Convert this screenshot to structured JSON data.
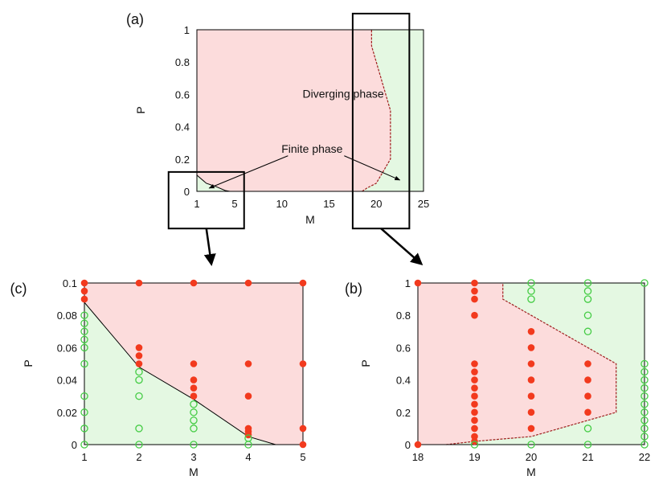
{
  "chart_data": [
    {
      "id": "a",
      "panel_label": "(a)",
      "type": "area",
      "xlabel": "M",
      "ylabel": "P",
      "xlim": [
        1,
        25
      ],
      "ylim": [
        0,
        1
      ],
      "xticks": [
        1,
        5,
        10,
        15,
        20,
        25
      ],
      "yticks": [
        0,
        0.2,
        0.4,
        0.6,
        0.8,
        1
      ],
      "ytick_labels": [
        "0",
        "0.2",
        "0.4",
        "0.6",
        "0.8",
        "1"
      ],
      "regions": {
        "diverging_color": "#fcdcdc",
        "finite_color": "#e4f8e2"
      },
      "boundary_left": [
        [
          1,
          0.1
        ],
        [
          2,
          0.05
        ],
        [
          3,
          0.03
        ],
        [
          4,
          0.005
        ],
        [
          4.5,
          0
        ]
      ],
      "boundary_right": [
        [
          18.5,
          0
        ],
        [
          19,
          0.02
        ],
        [
          20,
          0.05
        ],
        [
          21.5,
          0.2
        ],
        [
          21.5,
          0.5
        ],
        [
          19.5,
          0.9
        ],
        [
          19.5,
          1
        ]
      ],
      "annotations": [
        {
          "text": "Diverging phase",
          "x": 16.5,
          "y": 0.58
        },
        {
          "text": "Finite phase",
          "x": 13.2,
          "y": 0.24,
          "arrows_to": [
            [
              2.3,
              0.02
            ],
            [
              22.5,
              0.07
            ]
          ]
        }
      ],
      "zoom_boxes": [
        {
          "x": [
            -2,
            6
          ],
          "y": [
            -0.23,
            0.12
          ],
          "target": "c"
        },
        {
          "x": [
            17.5,
            23.5
          ],
          "y": [
            -0.23,
            1.1
          ],
          "target": "b"
        }
      ]
    },
    {
      "id": "c",
      "panel_label": "(c)",
      "type": "scatter",
      "xlabel": "M",
      "ylabel": "P",
      "xlim": [
        1,
        5
      ],
      "ylim": [
        0,
        0.1
      ],
      "xticks": [
        1,
        2,
        3,
        4,
        5
      ],
      "yticks": [
        0,
        0.02,
        0.04,
        0.06,
        0.08,
        0.1
      ],
      "ytick_labels": [
        "0",
        "0.02",
        "0.04",
        "0.06",
        "0.08",
        "0.1"
      ],
      "boundary": [
        [
          1,
          0.088
        ],
        [
          2,
          0.048
        ],
        [
          3,
          0.028
        ],
        [
          4,
          0.005
        ],
        [
          4.5,
          0
        ]
      ],
      "diverging_points": [
        [
          1,
          0.1
        ],
        [
          1,
          0.095
        ],
        [
          1,
          0.09
        ],
        [
          2,
          0.1
        ],
        [
          2,
          0.06
        ],
        [
          2,
          0.055
        ],
        [
          2,
          0.05
        ],
        [
          3,
          0.1
        ],
        [
          3,
          0.05
        ],
        [
          3,
          0.04
        ],
        [
          3,
          0.035
        ],
        [
          3,
          0.03
        ],
        [
          4,
          0.1
        ],
        [
          4,
          0.05
        ],
        [
          4,
          0.03
        ],
        [
          4,
          0.01
        ],
        [
          4,
          0.008
        ],
        [
          4,
          0.006
        ],
        [
          5,
          0.1
        ],
        [
          5,
          0.05
        ],
        [
          5,
          0.01
        ],
        [
          5,
          0
        ]
      ],
      "finite_points": [
        [
          1,
          0
        ],
        [
          1,
          0.01
        ],
        [
          1,
          0.02
        ],
        [
          1,
          0.03
        ],
        [
          1,
          0.05
        ],
        [
          1,
          0.06
        ],
        [
          1,
          0.065
        ],
        [
          1,
          0.07
        ],
        [
          1,
          0.075
        ],
        [
          1,
          0.08
        ],
        [
          2,
          0
        ],
        [
          2,
          0.01
        ],
        [
          2,
          0.03
        ],
        [
          2,
          0.04
        ],
        [
          2,
          0.045
        ],
        [
          3,
          0
        ],
        [
          3,
          0.01
        ],
        [
          3,
          0.015
        ],
        [
          3,
          0.02
        ],
        [
          3,
          0.025
        ],
        [
          4,
          0
        ],
        [
          4,
          0.004
        ]
      ]
    },
    {
      "id": "b",
      "panel_label": "(b)",
      "type": "scatter",
      "xlabel": "M",
      "ylabel": "P",
      "xlim": [
        18,
        22
      ],
      "ylim": [
        0,
        1
      ],
      "xticks": [
        18,
        19,
        20,
        21,
        22
      ],
      "yticks": [
        0,
        0.2,
        0.4,
        0.6,
        0.8,
        1
      ],
      "ytick_labels": [
        "0",
        "0.2",
        "0.4",
        "0.6",
        "0.8",
        "1"
      ],
      "boundary": [
        [
          18.5,
          0
        ],
        [
          19,
          0.02
        ],
        [
          20,
          0.05
        ],
        [
          21.5,
          0.2
        ],
        [
          21.5,
          0.5
        ],
        [
          19.5,
          0.9
        ],
        [
          19.5,
          1
        ]
      ],
      "diverging_points": [
        [
          18,
          1
        ],
        [
          18,
          0
        ],
        [
          19,
          1
        ],
        [
          19,
          0.95
        ],
        [
          19,
          0.9
        ],
        [
          19,
          0.8
        ],
        [
          19,
          0.5
        ],
        [
          19,
          0.45
        ],
        [
          19,
          0.4
        ],
        [
          19,
          0.35
        ],
        [
          19,
          0.3
        ],
        [
          19,
          0.25
        ],
        [
          19,
          0.2
        ],
        [
          19,
          0.15
        ],
        [
          19,
          0.1
        ],
        [
          19,
          0.05
        ],
        [
          19,
          0.02
        ],
        [
          20,
          0.7
        ],
        [
          20,
          0.6
        ],
        [
          20,
          0.5
        ],
        [
          20,
          0.4
        ],
        [
          20,
          0.3
        ],
        [
          20,
          0.2
        ],
        [
          20,
          0.1
        ],
        [
          21,
          0.5
        ],
        [
          21,
          0.4
        ],
        [
          21,
          0.3
        ],
        [
          21,
          0.2
        ]
      ],
      "finite_points": [
        [
          19,
          0
        ],
        [
          20,
          1
        ],
        [
          20,
          0.95
        ],
        [
          20,
          0.9
        ],
        [
          20,
          0
        ],
        [
          21,
          1
        ],
        [
          21,
          0.95
        ],
        [
          21,
          0.9
        ],
        [
          21,
          0.8
        ],
        [
          21,
          0.7
        ],
        [
          21,
          0.1
        ],
        [
          21,
          0
        ],
        [
          22,
          1
        ],
        [
          22,
          0.5
        ],
        [
          22,
          0.45
        ],
        [
          22,
          0.4
        ],
        [
          22,
          0.35
        ],
        [
          22,
          0.3
        ],
        [
          22,
          0.25
        ],
        [
          22,
          0.2
        ],
        [
          22,
          0.15
        ],
        [
          22,
          0.1
        ],
        [
          22,
          0.05
        ],
        [
          22,
          0
        ]
      ]
    }
  ],
  "colors": {
    "diverging_fill": "#fcdcdc",
    "finite_fill": "#e4f8e2",
    "diverging_point": "#f23a1e",
    "finite_point": "#44cc44",
    "boundary_line": "#a02020",
    "frame": "#000000"
  }
}
